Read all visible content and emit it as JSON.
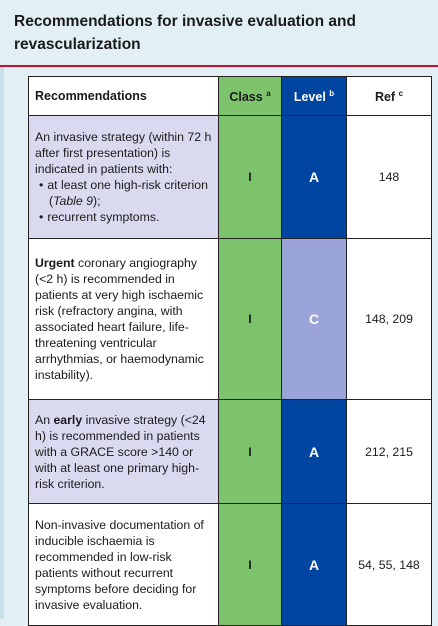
{
  "header": {
    "title": "Recommendations for invasive evaluation and revascularization"
  },
  "table": {
    "columns": [
      {
        "label": "Recommendations"
      },
      {
        "label": "Class",
        "sup": "a"
      },
      {
        "label": "Level",
        "sup": "b"
      },
      {
        "label": "Ref",
        "sup": "c"
      }
    ],
    "rows": [
      {
        "text": "An invasive strategy (within 72 h after first presentation) is indicated in patients with:",
        "bullets": [
          [
            "at least one high-risk criterion (",
            "Table 9",
            ");"
          ],
          [
            "recurrent symptoms."
          ]
        ],
        "class": "I",
        "level": "A",
        "ref": "148"
      },
      {
        "bold": "Urgent",
        "text": " coronary angiography (<2 h) is recommended in patients at very high ischaemic risk (refractory angina, with associated heart failure, life-threatening ventricular arrhythmias, or haemodynamic instability).",
        "class": "I",
        "level": "C",
        "ref": "148, 209"
      },
      {
        "pre": "An ",
        "bold": "early",
        "text": " invasive strategy (<24 h) is recommended in patients with a GRACE score >140 or with at least one primary high-risk criterion.",
        "class": "I",
        "level": "A",
        "ref": "212, 215"
      },
      {
        "text": "Non-invasive documentation of inducible ischaemia is recommended in low-risk patients without recurrent symptoms before deciding for invasive evaluation.",
        "class": "I",
        "level": "A",
        "ref": "54, 55, 148"
      }
    ]
  }
}
